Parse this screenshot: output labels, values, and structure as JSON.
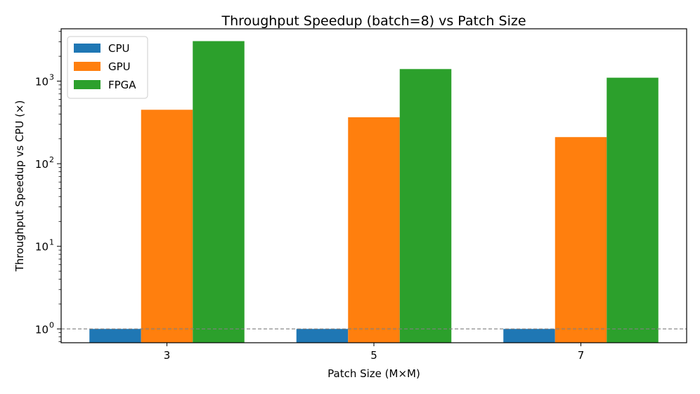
{
  "chart_data": {
    "type": "bar",
    "title": "Throughput Speedup (batch=8) vs Patch Size",
    "xlabel": "Patch Size (M×M)",
    "ylabel": "Throughput Speedup vs CPU (×)",
    "yscale": "log",
    "ylim": [
      0.68,
      4300
    ],
    "categories": [
      "3",
      "5",
      "7"
    ],
    "series": [
      {
        "name": "CPU",
        "color": "#1f77b4",
        "values": [
          1,
          1,
          1
        ]
      },
      {
        "name": "GPU",
        "color": "#ff7f0e",
        "values": [
          450,
          365,
          210
        ]
      },
      {
        "name": "FPGA",
        "color": "#2ca02c",
        "values": [
          3050,
          1400,
          1100
        ]
      }
    ],
    "y_major_ticks": [
      {
        "value": 1,
        "base": "10",
        "exp": "0"
      },
      {
        "value": 10,
        "base": "10",
        "exp": "1"
      },
      {
        "value": 100,
        "base": "10",
        "exp": "2"
      },
      {
        "value": 1000,
        "base": "10",
        "exp": "3"
      }
    ],
    "reference_line": {
      "value": 1,
      "style": "dashed",
      "color": "#808080"
    },
    "legend": {
      "position": "top-left"
    },
    "grid": false
  }
}
